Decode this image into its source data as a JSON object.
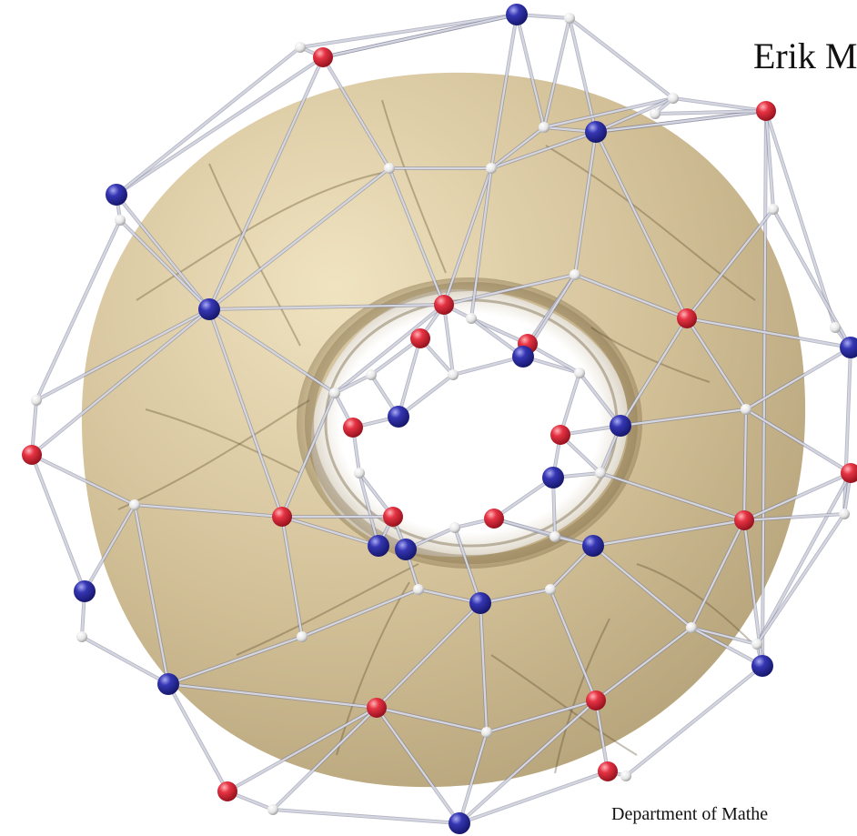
{
  "header": {
    "author_text": "Erik M"
  },
  "footer": {
    "department_text": "Department of Mathe"
  },
  "figure": {
    "surface": "torus",
    "surface_color": "#c9b58a",
    "edge_color": "#d4d6e2",
    "vertex_colors": {
      "red": "#e3303f",
      "blue": "#2e2fa8",
      "white": "#eeeeee"
    }
  }
}
